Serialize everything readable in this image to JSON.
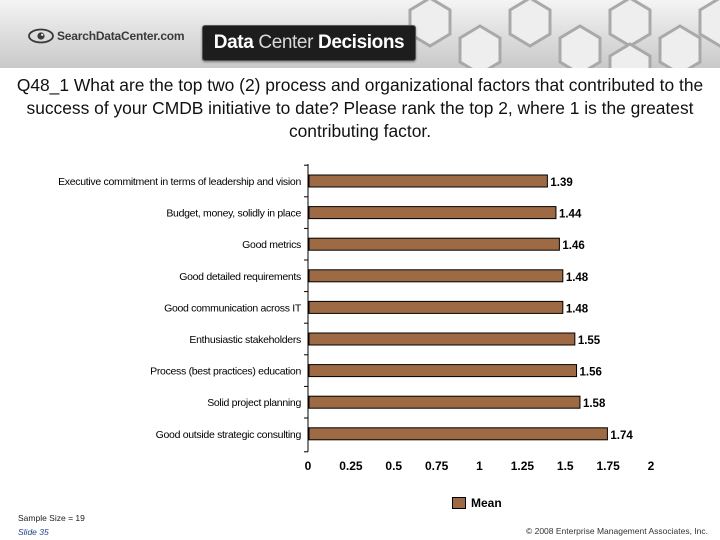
{
  "header": {
    "logo_text": "SearchDataCenter.com",
    "banner_parts": [
      "Data",
      "Center",
      "Decisions"
    ]
  },
  "question": "Q48_1 What are the top two (2) process and organizational factors that contributed to the success of your CMDB initiative to date? Please rank the top 2, where 1 is the greatest contributing factor.",
  "chart_data": {
    "type": "bar",
    "orientation": "horizontal",
    "title": "",
    "categories": [
      "Executive commitment in terms of leadership and vision",
      "Budget, money, solidly in place",
      "Good metrics",
      "Good detailed requirements",
      "Good communication across IT",
      "Enthusiastic stakeholders",
      "Process (best practices) education",
      "Solid project planning",
      "Good outside strategic consulting"
    ],
    "series": [
      {
        "name": "Mean",
        "values": [
          1.39,
          1.44,
          1.46,
          1.48,
          1.48,
          1.55,
          1.56,
          1.58,
          1.74
        ],
        "value_labels": [
          "1.39",
          "1.44",
          "1.46",
          "1.48",
          "1.48",
          "1.55",
          "1.56",
          "1.58",
          "1.74"
        ]
      }
    ],
    "xlim": [
      0,
      2
    ],
    "xticks": [
      0,
      0.25,
      0.5,
      0.75,
      1,
      1.25,
      1.5,
      1.75,
      2
    ],
    "xtick_labels": [
      "0",
      "0.25",
      "0.5",
      "0.75",
      "1",
      "1.25",
      "1.5",
      "1.75",
      "2"
    ],
    "xlabel": "",
    "ylabel": "",
    "legend": "bottom-right",
    "bar_color": "#9e6a43"
  },
  "legend_label": "Mean",
  "footer": {
    "sample_size": "Sample Size = 19",
    "slide": "Slide  35",
    "copyright": "© 2008 Enterprise Management Associates, Inc."
  }
}
